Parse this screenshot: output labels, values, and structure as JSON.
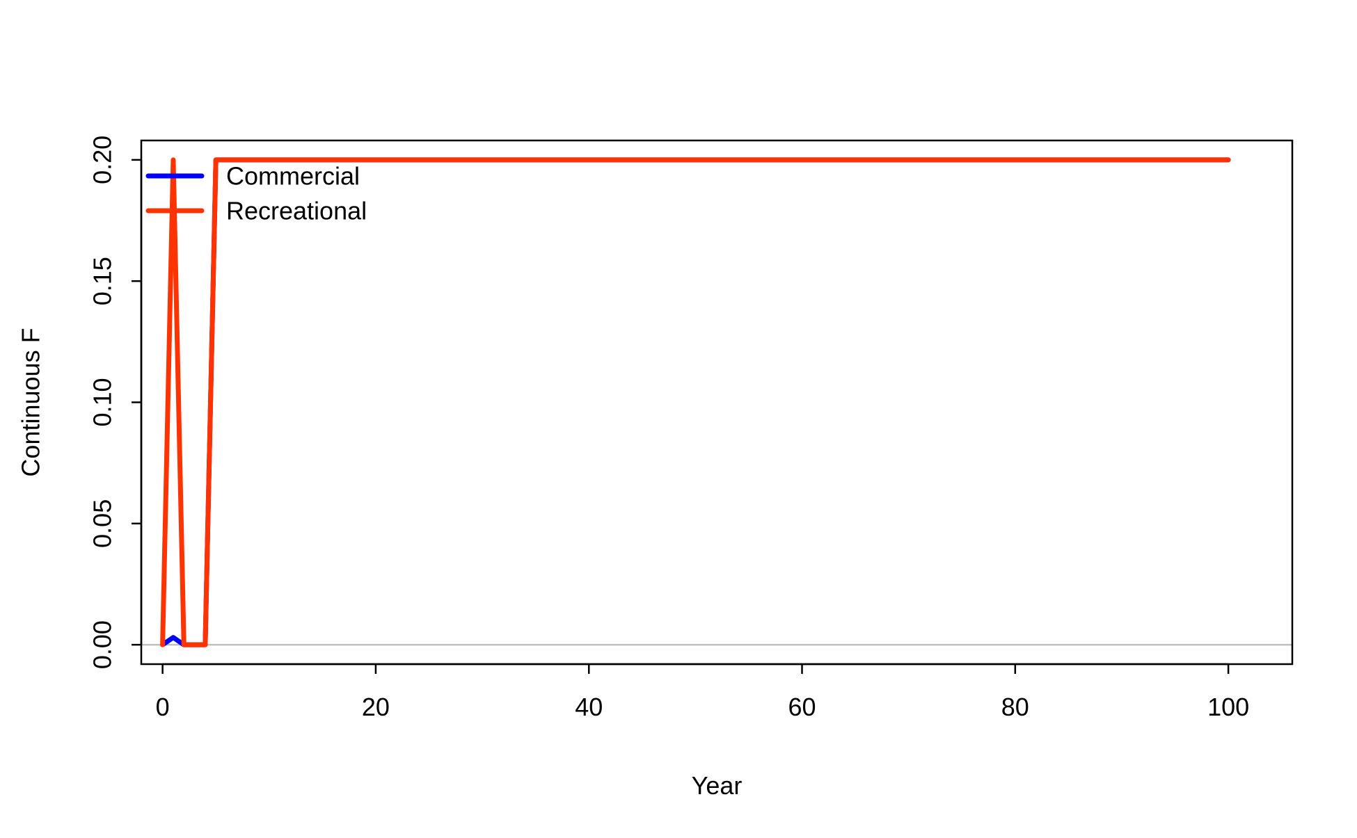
{
  "chart_data": {
    "type": "line",
    "xlabel": "Year",
    "ylabel": "Continuous F",
    "xlim": [
      -2,
      106
    ],
    "ylim": [
      -0.008,
      0.208
    ],
    "xticks": [
      0,
      20,
      40,
      60,
      80,
      100
    ],
    "xtick_labels": [
      "0",
      "20",
      "40",
      "60",
      "80",
      "100"
    ],
    "yticks": [
      0.0,
      0.05,
      0.1,
      0.15,
      0.2
    ],
    "ytick_labels": [
      "0.00",
      "0.05",
      "0.10",
      "0.15",
      "0.20"
    ],
    "reference_line": {
      "y": 0,
      "color": "#bebebe"
    },
    "legend_position": "top-left",
    "grid": false,
    "series": [
      {
        "name": "Commercial",
        "color": "#0000ff",
        "x": [
          0,
          1,
          2,
          3,
          4,
          5,
          100
        ],
        "y": [
          0,
          0.003,
          0,
          0,
          0,
          0.2,
          0.2
        ]
      },
      {
        "name": "Recreational",
        "color": "#ff3300",
        "x": [
          0,
          1,
          2,
          3,
          4,
          5,
          100
        ],
        "y": [
          0,
          0.2,
          0,
          0,
          0,
          0.2,
          0.2
        ]
      }
    ]
  }
}
